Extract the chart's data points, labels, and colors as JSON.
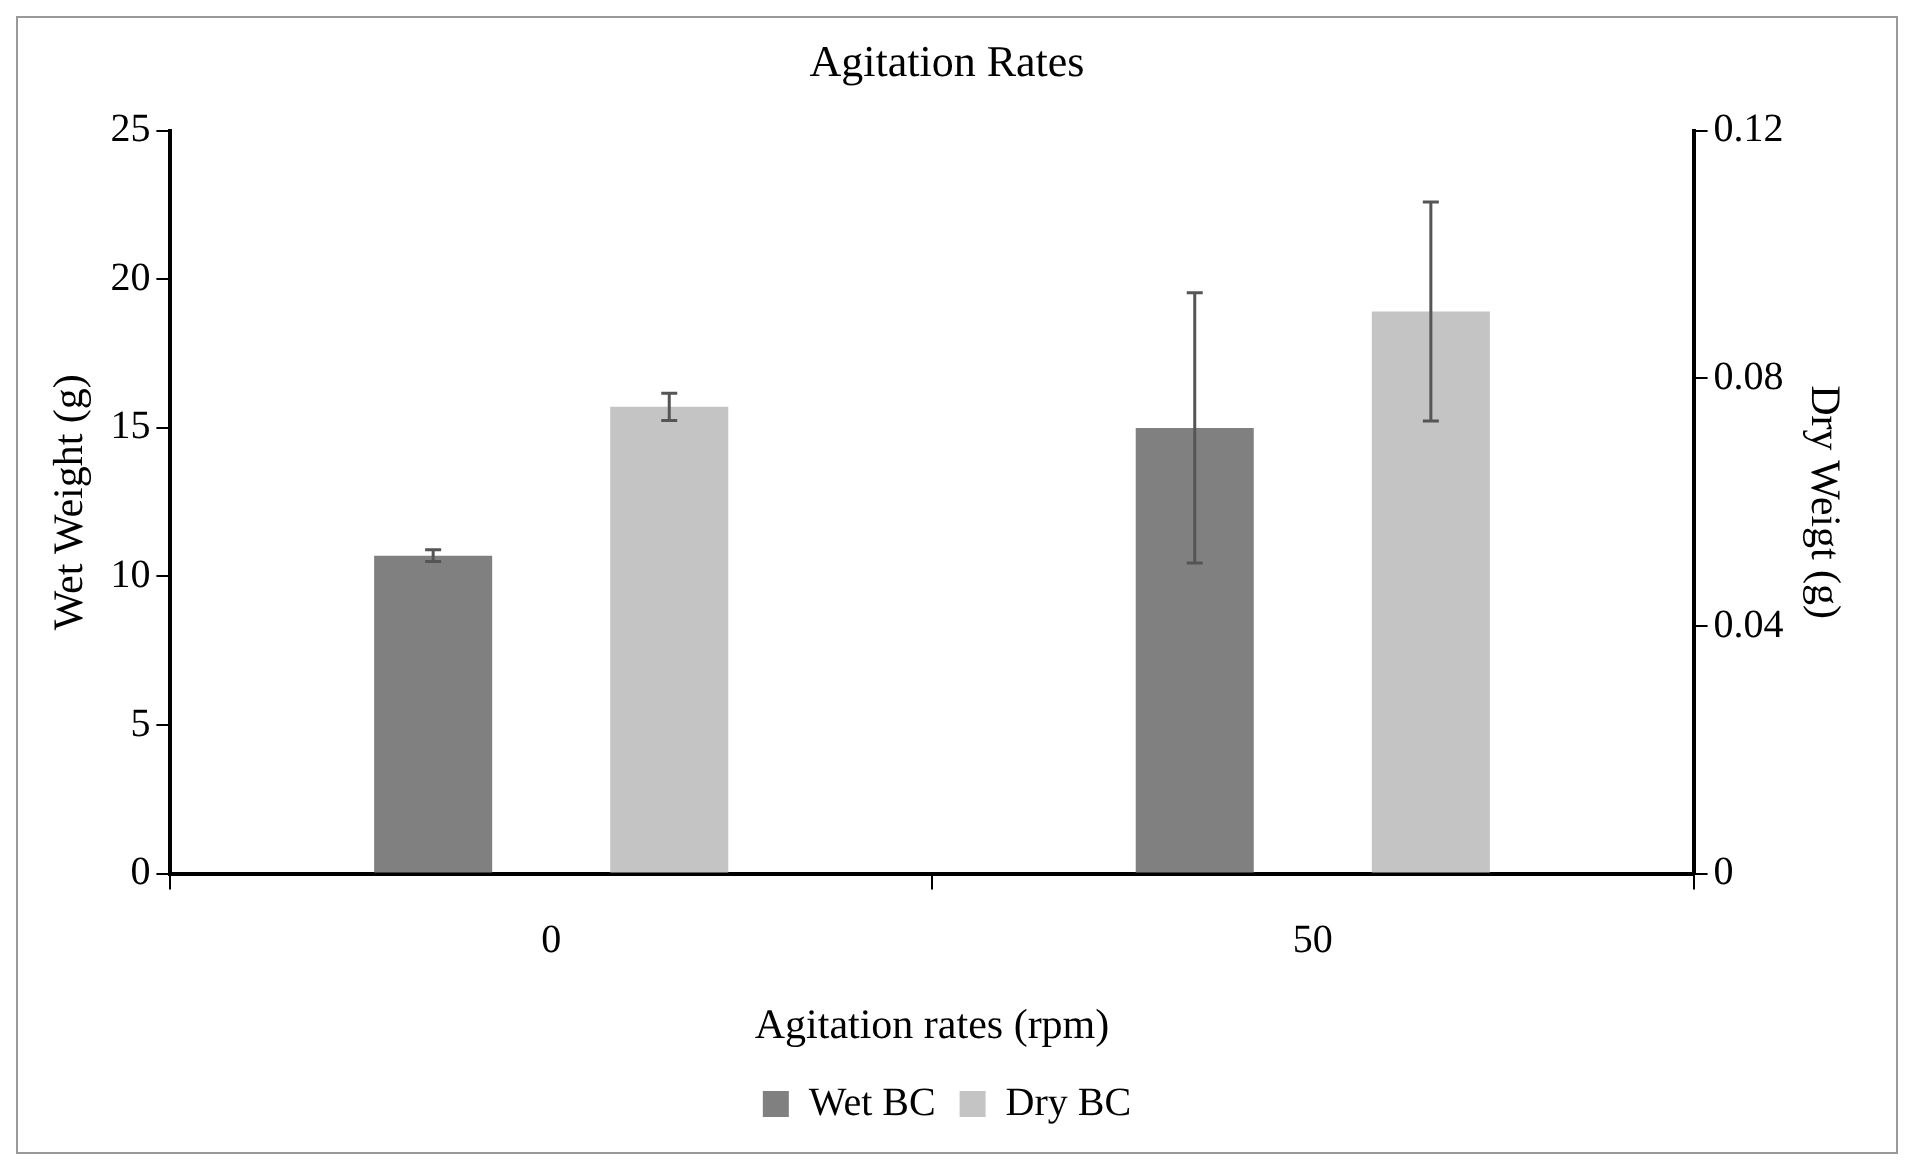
{
  "chart_data": {
    "type": "bar",
    "title": "Agitation Rates",
    "xlabel": "Agitation rates (rpm)",
    "ylabel": "Wet Weight (g)",
    "y2label": "Dry Weigt (g)",
    "categories": [
      "0",
      "50"
    ],
    "series": [
      {
        "name": "Wet BC",
        "color": "#808080",
        "values": [
          10.7,
          15.0
        ],
        "errors": [
          0.2,
          4.55
        ]
      },
      {
        "name": "Dry BC",
        "color": "#c4c4c4",
        "axis": "y2",
        "values": [
          0.0754,
          0.0908
        ],
        "errors": [
          0.0022,
          0.0177
        ]
      }
    ],
    "ylim": [
      0,
      25
    ],
    "yticks": [
      0,
      5,
      10,
      15,
      20,
      25
    ],
    "y2lim": [
      0,
      0.12
    ],
    "y2ticks": [
      0,
      0.04,
      0.08,
      0.12
    ],
    "grid": false,
    "legend": "bottom"
  }
}
